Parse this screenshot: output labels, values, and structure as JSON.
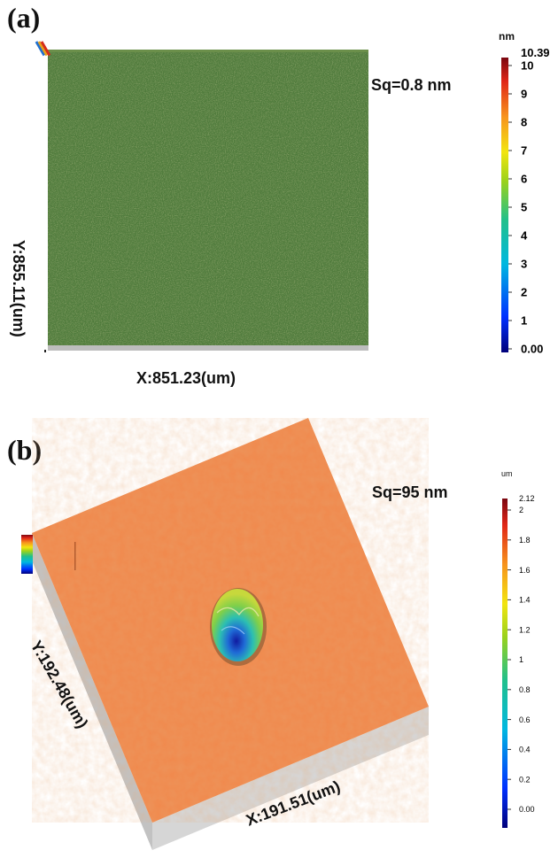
{
  "panel_a": {
    "label": "(a)",
    "roughness": "Sq=0.8 nm",
    "x_axis": "X:851.23(um)",
    "y_axis": "Y:855.11(um)",
    "scale": {
      "unit": "nm",
      "max_label": "10.39",
      "ticks": [
        "10",
        "9",
        "8",
        "7",
        "6",
        "5",
        "4",
        "3",
        "2",
        "1",
        "0.00"
      ]
    }
  },
  "panel_b": {
    "label": "(b)",
    "roughness": "Sq=95 nm",
    "x_axis": "X:191.51(um)",
    "y_axis": "Y:192.48(um)",
    "scale": {
      "unit": "um",
      "max_label": "2.12",
      "ticks": [
        "2",
        "1.8",
        "1.6",
        "1.4",
        "1.2",
        "1",
        "0.8",
        "0.6",
        "0.4",
        "0.2",
        "0.00"
      ]
    }
  },
  "colors": {
    "surface_a": "#4e7a3a",
    "surface_b": "#f08a4e",
    "side_wall": "#c9c9c9",
    "pit_center": "#1a3fbf"
  }
}
